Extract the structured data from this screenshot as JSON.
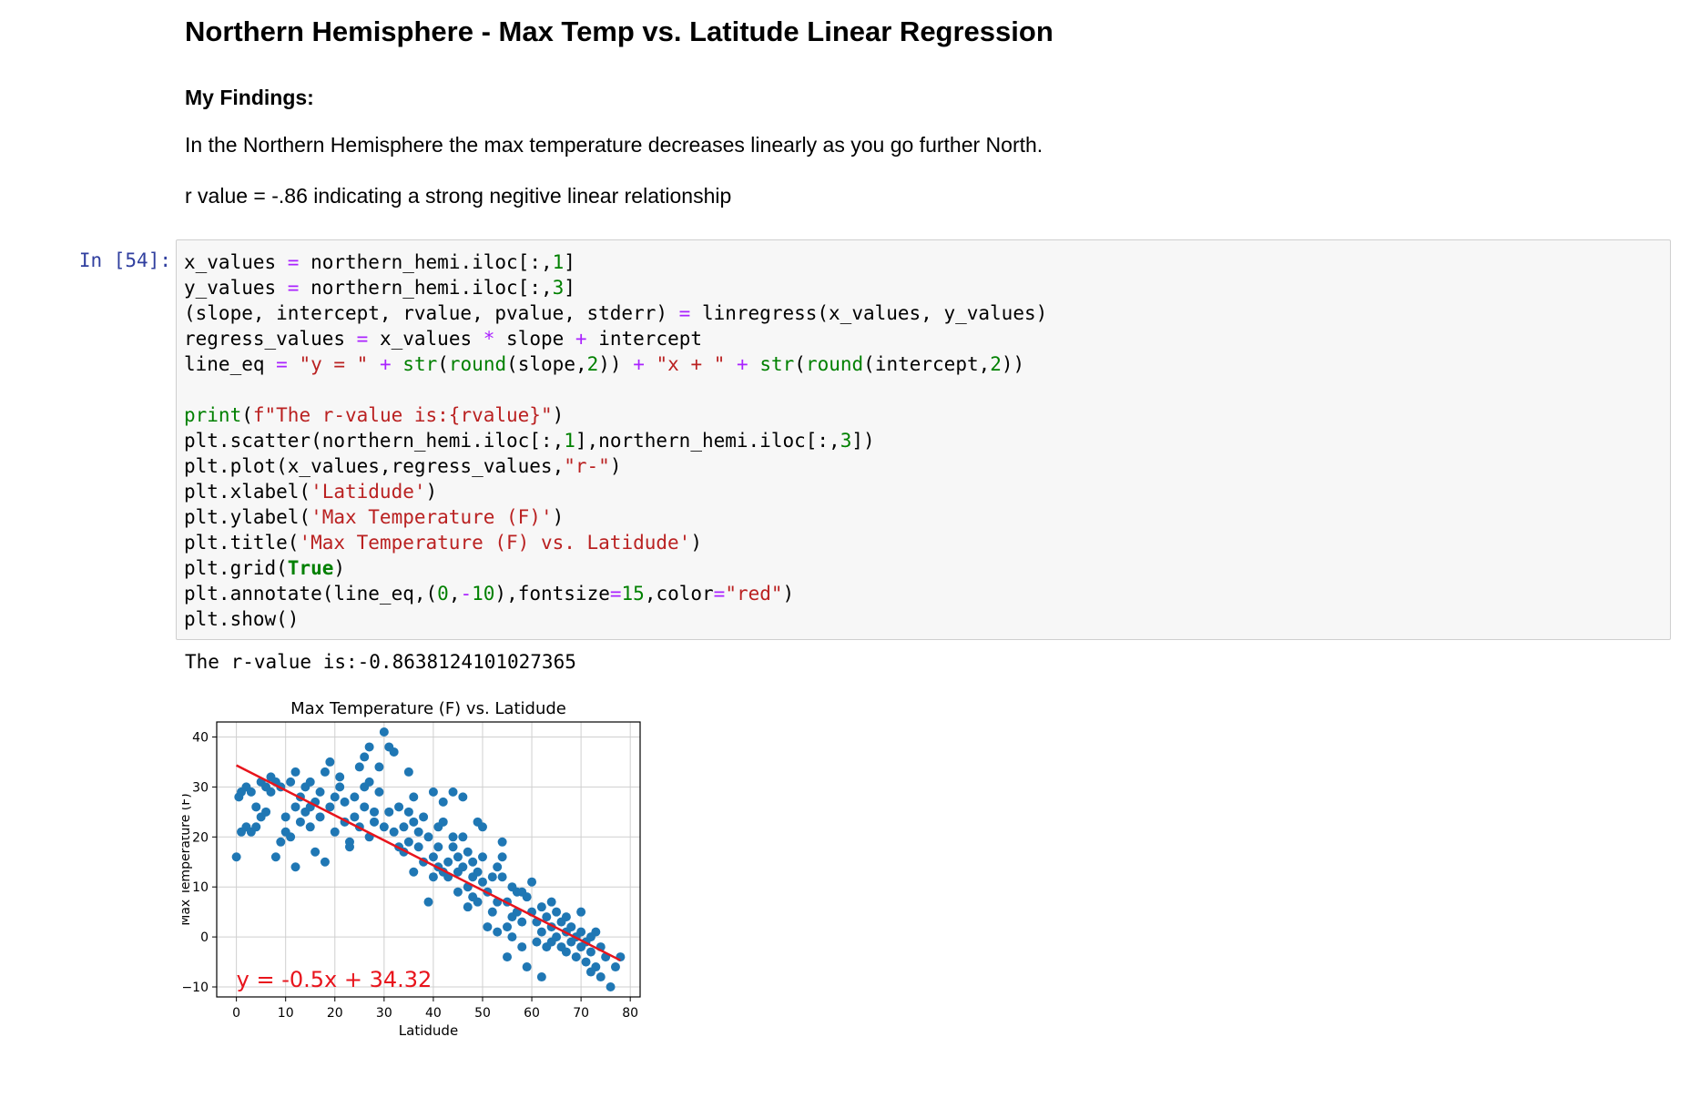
{
  "markdown": {
    "title": "Northern Hemisphere - Max Temp vs. Latitude Linear Regression",
    "heading": "My Findings:",
    "paragraph1": "In the Northern Hemisphere the max temperature decreases linearly as you go further North.",
    "paragraph2": "r value = -.86 indicating a strong negitive linear relationship"
  },
  "cell": {
    "prompt": "In [54]:",
    "code_lines": [
      "x_values = northern_hemi.iloc[:,1]",
      "y_values = northern_hemi.iloc[:,3]",
      "(slope, intercept, rvalue, pvalue, stderr) = linregress(x_values, y_values)",
      "regress_values = x_values * slope + intercept",
      "line_eq = \"y = \" + str(round(slope,2)) + \"x + \" + str(round(intercept,2))",
      "",
      "print(f\"The r-value is:{rvalue}\")",
      "plt.scatter(northern_hemi.iloc[:,1],northern_hemi.iloc[:,3])",
      "plt.plot(x_values,regress_values,\"r-\")",
      "plt.xlabel('Latidude')",
      "plt.ylabel('Max Temperature (F)')",
      "plt.title('Max Temperature (F) vs. Latidude')",
      "plt.grid(True)",
      "plt.annotate(line_eq,(0,-10),fontsize=15,color=\"red\")",
      "plt.show()"
    ],
    "output_text": "The r-value is:-0.8638124101027365"
  },
  "colors": {
    "point": "#1f77b4",
    "line": "#e8141c",
    "annotation": "#e8141c",
    "grid": "#cfcfcf",
    "prompt": "#303f9f"
  },
  "chart_data": {
    "type": "scatter",
    "title": "Max Temperature (F) vs. Latidude",
    "xlabel": "Latidude",
    "ylabel": "Max Temperature (F)",
    "xlim": [
      -4,
      82
    ],
    "ylim": [
      -12,
      43
    ],
    "xticks": [
      0,
      10,
      20,
      30,
      40,
      50,
      60,
      70,
      80
    ],
    "yticks": [
      -10,
      0,
      10,
      20,
      30,
      40
    ],
    "grid": true,
    "annotation": {
      "text": "y = -0.5x + 34.32",
      "x": 0,
      "y": -10
    },
    "regression": {
      "slope": -0.5,
      "intercept": 34.32,
      "x_range": [
        0,
        78
      ]
    },
    "points": [
      [
        0,
        16
      ],
      [
        0.5,
        28
      ],
      [
        1,
        29
      ],
      [
        1,
        21
      ],
      [
        2,
        30
      ],
      [
        2,
        22
      ],
      [
        3,
        29
      ],
      [
        3,
        21
      ],
      [
        4,
        22
      ],
      [
        4,
        26
      ],
      [
        5,
        24
      ],
      [
        5,
        31
      ],
      [
        6,
        30
      ],
      [
        6,
        25
      ],
      [
        7,
        32
      ],
      [
        7,
        29
      ],
      [
        8,
        31
      ],
      [
        8,
        16
      ],
      [
        9,
        19
      ],
      [
        9,
        30
      ],
      [
        10,
        21
      ],
      [
        10,
        24
      ],
      [
        11,
        20
      ],
      [
        11,
        31
      ],
      [
        12,
        14
      ],
      [
        12,
        26
      ],
      [
        12,
        33
      ],
      [
        13,
        23
      ],
      [
        13,
        28
      ],
      [
        14,
        25
      ],
      [
        14,
        30
      ],
      [
        15,
        26
      ],
      [
        15,
        22
      ],
      [
        15,
        31
      ],
      [
        16,
        17
      ],
      [
        16,
        27
      ],
      [
        17,
        24
      ],
      [
        17,
        29
      ],
      [
        18,
        33
      ],
      [
        18,
        15
      ],
      [
        19,
        35
      ],
      [
        19,
        26
      ],
      [
        20,
        28
      ],
      [
        20,
        21
      ],
      [
        21,
        30
      ],
      [
        21,
        32
      ],
      [
        22,
        23
      ],
      [
        22,
        27
      ],
      [
        23,
        19
      ],
      [
        23,
        18
      ],
      [
        24,
        28
      ],
      [
        24,
        24
      ],
      [
        25,
        22
      ],
      [
        25,
        34
      ],
      [
        26,
        26
      ],
      [
        26,
        30
      ],
      [
        26,
        36
      ],
      [
        27,
        20
      ],
      [
        27,
        31
      ],
      [
        27,
        38
      ],
      [
        28,
        25
      ],
      [
        28,
        23
      ],
      [
        29,
        29
      ],
      [
        29,
        34
      ],
      [
        30,
        41
      ],
      [
        30,
        22
      ],
      [
        31,
        38
      ],
      [
        31,
        25
      ],
      [
        32,
        37
      ],
      [
        32,
        21
      ],
      [
        33,
        26
      ],
      [
        33,
        18
      ],
      [
        34,
        22
      ],
      [
        34,
        17
      ],
      [
        35,
        33
      ],
      [
        35,
        25
      ],
      [
        35,
        19
      ],
      [
        36,
        28
      ],
      [
        36,
        23
      ],
      [
        36,
        13
      ],
      [
        37,
        21
      ],
      [
        37,
        18
      ],
      [
        38,
        24
      ],
      [
        38,
        15
      ],
      [
        39,
        20
      ],
      [
        39,
        7
      ],
      [
        40,
        29
      ],
      [
        40,
        16
      ],
      [
        40,
        12
      ],
      [
        41,
        22
      ],
      [
        41,
        18
      ],
      [
        41,
        14
      ],
      [
        42,
        13
      ],
      [
        42,
        27
      ],
      [
        42,
        23
      ],
      [
        43,
        15
      ],
      [
        43,
        12
      ],
      [
        44,
        20
      ],
      [
        44,
        18
      ],
      [
        44,
        29
      ],
      [
        45,
        16
      ],
      [
        45,
        13
      ],
      [
        45,
        9
      ],
      [
        46,
        20
      ],
      [
        46,
        28
      ],
      [
        46,
        14
      ],
      [
        47,
        10
      ],
      [
        47,
        6
      ],
      [
        47,
        17
      ],
      [
        48,
        15
      ],
      [
        48,
        8
      ],
      [
        48,
        12
      ],
      [
        49,
        13
      ],
      [
        49,
        7
      ],
      [
        49,
        23
      ],
      [
        50,
        11
      ],
      [
        50,
        16
      ],
      [
        50,
        22
      ],
      [
        51,
        2
      ],
      [
        51,
        9
      ],
      [
        52,
        12
      ],
      [
        52,
        5
      ],
      [
        53,
        14
      ],
      [
        53,
        7
      ],
      [
        53,
        1
      ],
      [
        54,
        19
      ],
      [
        54,
        16
      ],
      [
        54,
        12
      ],
      [
        55,
        7
      ],
      [
        55,
        -4
      ],
      [
        55,
        2
      ],
      [
        56,
        10
      ],
      [
        56,
        4
      ],
      [
        56,
        0
      ],
      [
        57,
        9
      ],
      [
        57,
        5
      ],
      [
        58,
        3
      ],
      [
        58,
        -2
      ],
      [
        58,
        9
      ],
      [
        59,
        -6
      ],
      [
        59,
        8
      ],
      [
        60,
        11
      ],
      [
        60,
        5
      ],
      [
        61,
        3
      ],
      [
        61,
        -1
      ],
      [
        62,
        6
      ],
      [
        62,
        1
      ],
      [
        62,
        -8
      ],
      [
        63,
        4
      ],
      [
        63,
        -2
      ],
      [
        64,
        7
      ],
      [
        64,
        2
      ],
      [
        64,
        -1
      ],
      [
        65,
        5
      ],
      [
        65,
        0
      ],
      [
        66,
        3
      ],
      [
        66,
        -2
      ],
      [
        67,
        4
      ],
      [
        67,
        1
      ],
      [
        67,
        -3
      ],
      [
        68,
        2
      ],
      [
        68,
        -1
      ],
      [
        69,
        0
      ],
      [
        69,
        -4
      ],
      [
        70,
        1
      ],
      [
        70,
        -2
      ],
      [
        70,
        5
      ],
      [
        71,
        -1
      ],
      [
        71,
        -5
      ],
      [
        72,
        0
      ],
      [
        72,
        -3
      ],
      [
        72,
        -7
      ],
      [
        73,
        1
      ],
      [
        73,
        -6
      ],
      [
        74,
        -2
      ],
      [
        74,
        -8
      ],
      [
        75,
        -4
      ],
      [
        76,
        -10
      ],
      [
        77,
        -6
      ],
      [
        78,
        -4
      ]
    ]
  }
}
